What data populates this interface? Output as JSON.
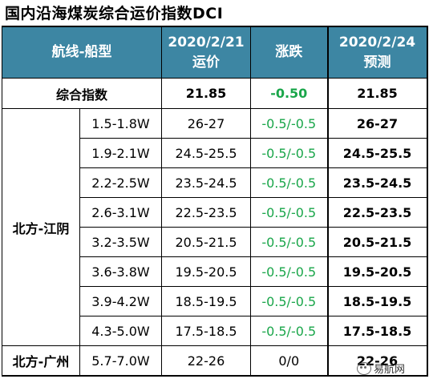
{
  "title": "国内沿海煤炭综合运价指数DCI",
  "header": {
    "route_type": "航线-船型",
    "date1": "2020/2/21",
    "date1_sub": "运价",
    "change": "涨跌",
    "date2": "2020/2/24",
    "date2_sub": "预测"
  },
  "composite": {
    "label": "综合指数",
    "price": "21.85",
    "change": "-0.50",
    "forecast": "21.85"
  },
  "groups": [
    {
      "route": "北方-江阴",
      "rows": [
        {
          "size": "1.5-1.8W",
          "price": "26-27",
          "change": "-0.5/-0.5",
          "forecast": "26-27"
        },
        {
          "size": "1.9-2.1W",
          "price": "24.5-25.5",
          "change": "-0.5/-0.5",
          "forecast": "24.5-25.5"
        },
        {
          "size": "2.2-2.5W",
          "price": "23.5-24.5",
          "change": "-0.5/-0.5",
          "forecast": "23.5-24.5"
        },
        {
          "size": "2.6-3.1W",
          "price": "22.5-23.5",
          "change": "-0.5/-0.5",
          "forecast": "22.5-23.5"
        },
        {
          "size": "3.2-3.5W",
          "price": "20.5-21.5",
          "change": "-0.5/-0.5",
          "forecast": "20.5-21.5"
        },
        {
          "size": "3.6-3.8W",
          "price": "19.5-20.5",
          "change": "-0.5/-0.5",
          "forecast": "19.5-20.5"
        },
        {
          "size": "3.9-4.2W",
          "price": "18.5-19.5",
          "change": "-0.5/-0.5",
          "forecast": "18.5-19.5"
        },
        {
          "size": "4.3-5.0W",
          "price": "17.5-18.5",
          "change": "-0.5/-0.5",
          "forecast": "17.5-18.5"
        }
      ]
    },
    {
      "route": "北方-广州",
      "rows": [
        {
          "size": "5.7-7.0W",
          "price": "22-26",
          "change": "0/0",
          "forecast": "22-26"
        }
      ]
    }
  ],
  "watermark": "易航网",
  "colors": {
    "header_bg": "#3d86a3",
    "change_green": "#1aa64a"
  }
}
